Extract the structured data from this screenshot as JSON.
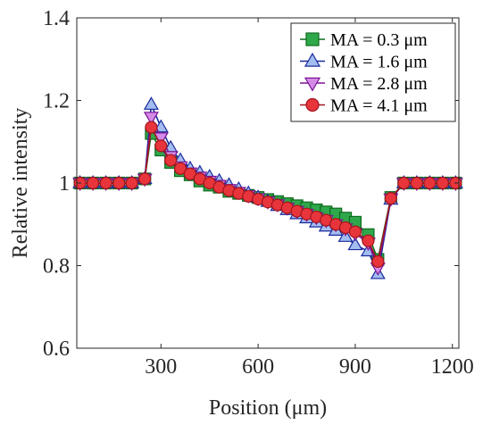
{
  "chart_data": {
    "type": "line",
    "xlabel": "Position (μm)",
    "ylabel": "Relative intensity",
    "xlim": [
      40,
      1220
    ],
    "ylim": [
      0.6,
      1.4
    ],
    "xticks": [
      300,
      600,
      900,
      1200
    ],
    "yticks": [
      0.6,
      0.8,
      1,
      1.2,
      1.4
    ],
    "ytick_labels": [
      "0.6",
      "0.8",
      "1",
      "1.2",
      "1.4"
    ],
    "legend_position": "top-right",
    "x": [
      50,
      90,
      130,
      170,
      210,
      250,
      270,
      300,
      330,
      360,
      390,
      420,
      450,
      480,
      510,
      540,
      570,
      600,
      630,
      660,
      690,
      720,
      750,
      780,
      810,
      840,
      870,
      900,
      940,
      970,
      1010,
      1050,
      1090,
      1130,
      1170,
      1210
    ],
    "series": [
      {
        "name": "MA = 0.3 μm",
        "marker": "square",
        "color": "#0e6b1e",
        "fill": "#2ea84a",
        "values": [
          1.0,
          1.0,
          1.0,
          1.0,
          1.0,
          1.01,
          1.12,
          1.08,
          1.05,
          1.03,
          1.02,
          1.005,
          0.995,
          0.99,
          0.98,
          0.975,
          0.97,
          0.965,
          0.96,
          0.955,
          0.95,
          0.945,
          0.94,
          0.935,
          0.93,
          0.925,
          0.915,
          0.905,
          0.875,
          0.815,
          0.965,
          1.0,
          1.0,
          1.0,
          1.0,
          1.0
        ]
      },
      {
        "name": "MA = 1.6 μm",
        "marker": "triangle-up",
        "color": "#1a2a9c",
        "fill": "#a4bdf0",
        "values": [
          1.0,
          1.0,
          1.0,
          1.0,
          1.0,
          1.01,
          1.19,
          1.135,
          1.085,
          1.055,
          1.035,
          1.025,
          1.015,
          1.005,
          0.995,
          0.985,
          0.975,
          0.965,
          0.955,
          0.945,
          0.935,
          0.925,
          0.915,
          0.905,
          0.895,
          0.885,
          0.87,
          0.85,
          0.835,
          0.78,
          0.96,
          1.0,
          1.0,
          1.0,
          1.0,
          1.0
        ]
      },
      {
        "name": "MA = 2.8 μm",
        "marker": "triangle-down",
        "color": "#7a1496",
        "fill": "#d48ae6",
        "values": [
          1.0,
          1.0,
          1.0,
          1.0,
          1.0,
          1.01,
          1.16,
          1.11,
          1.065,
          1.04,
          1.025,
          1.015,
          1.005,
          0.995,
          0.985,
          0.978,
          0.97,
          0.963,
          0.955,
          0.948,
          0.94,
          0.932,
          0.925,
          0.917,
          0.91,
          0.9,
          0.89,
          0.878,
          0.855,
          0.795,
          0.962,
          1.0,
          1.0,
          1.0,
          1.0,
          1.0
        ]
      },
      {
        "name": "MA = 4.1 μm",
        "marker": "circle",
        "color": "#a3141e",
        "fill": "#e8353c",
        "values": [
          1.0,
          1.0,
          1.0,
          1.0,
          1.0,
          1.01,
          1.135,
          1.09,
          1.055,
          1.035,
          1.022,
          1.01,
          1.0,
          0.99,
          0.982,
          0.975,
          0.968,
          0.961,
          0.954,
          0.947,
          0.94,
          0.932,
          0.925,
          0.918,
          0.91,
          0.9,
          0.892,
          0.882,
          0.86,
          0.81,
          0.963,
          1.0,
          1.0,
          1.0,
          1.0,
          1.0
        ]
      }
    ]
  }
}
